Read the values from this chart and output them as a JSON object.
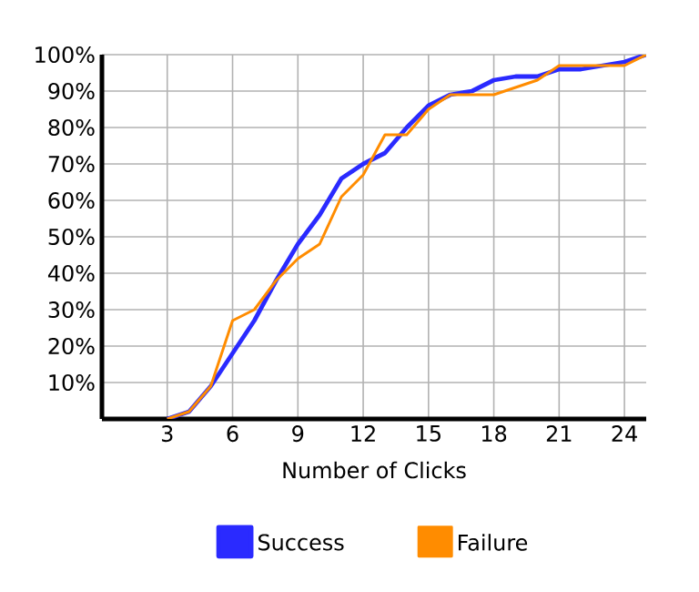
{
  "chart_data": {
    "type": "line",
    "xlabel": "Number of Clicks",
    "x": [
      3,
      4,
      5,
      6,
      7,
      8,
      9,
      10,
      11,
      12,
      13,
      14,
      15,
      16,
      17,
      18,
      19,
      20,
      21,
      22,
      23,
      24,
      25
    ],
    "series": [
      {
        "name": "Success",
        "color": "#2a2aff",
        "values": [
          0,
          2,
          9,
          18,
          27,
          38,
          48,
          56,
          66,
          70,
          73,
          80,
          86,
          89,
          90,
          93,
          94,
          94,
          96,
          96,
          97,
          98,
          100
        ]
      },
      {
        "name": "Failure",
        "color": "#ff8c00",
        "values": [
          0,
          2,
          9,
          27,
          30,
          38,
          44,
          48,
          61,
          67,
          78,
          78,
          85,
          89,
          89,
          89,
          91,
          93,
          97,
          97,
          97,
          97,
          100
        ]
      }
    ],
    "xlim": [
      0,
      25
    ],
    "ylim": [
      0,
      100
    ],
    "xticks": [
      3,
      6,
      9,
      12,
      15,
      18,
      21,
      24
    ],
    "yticks": [
      {
        "value": 10,
        "label": "10%"
      },
      {
        "value": 20,
        "label": "20%"
      },
      {
        "value": 30,
        "label": "30%"
      },
      {
        "value": 40,
        "label": "40%"
      },
      {
        "value": 50,
        "label": "50%"
      },
      {
        "value": 60,
        "label": "60%"
      },
      {
        "value": 70,
        "label": "70%"
      },
      {
        "value": 80,
        "label": "80%"
      },
      {
        "value": 90,
        "label": "90%"
      },
      {
        "value": 100,
        "label": "100%"
      }
    ],
    "grid": true,
    "legend": "bottom",
    "marker": "none",
    "line_style": "solid"
  }
}
